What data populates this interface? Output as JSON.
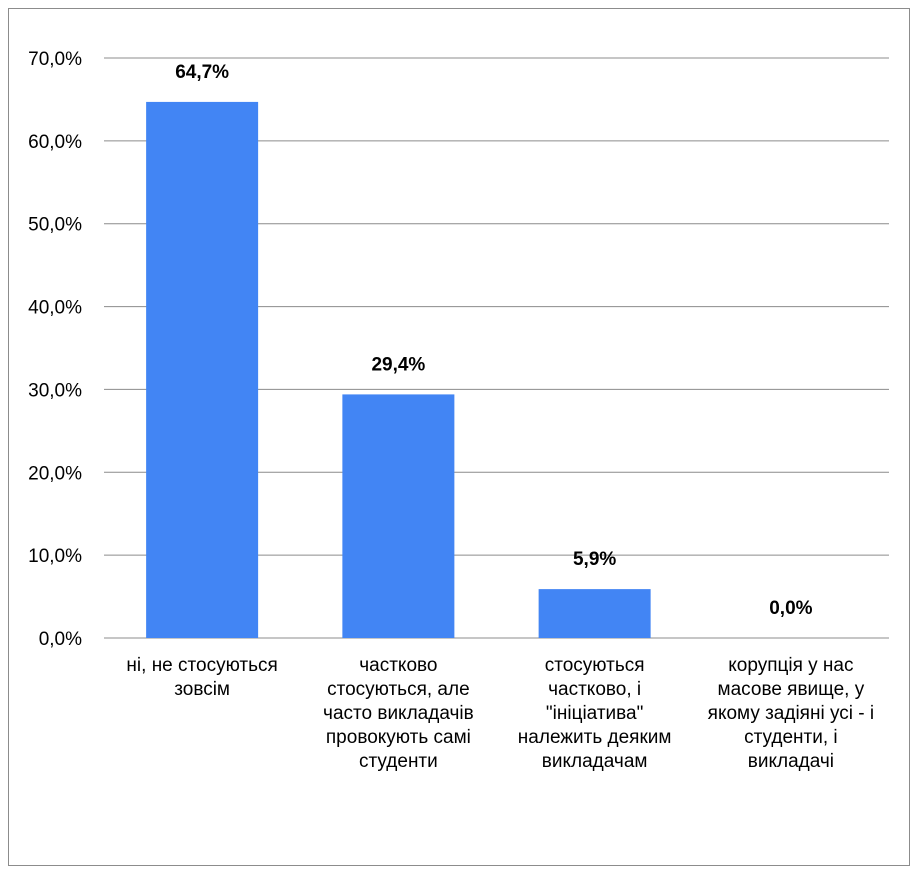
{
  "chart_data": {
    "type": "bar",
    "categories": [
      "ні, не стосуються зовсім",
      "частково стосуються, але часто викладачів провокують самі студенти",
      "стосуються частково, і \"ініціатива\" належить деяким викладачам",
      "корупція у нас масове явище,  у якому задіяні усі - і студенти, і викладачі"
    ],
    "values": [
      64.7,
      29.4,
      5.9,
      0.0
    ],
    "data_labels": [
      "64,7%",
      "29,4%",
      "5,9%",
      "0,0%"
    ],
    "ylim": [
      0,
      70
    ],
    "yticks": [
      "0,0%",
      "10,0%",
      "20,0%",
      "30,0%",
      "40,0%",
      "50,0%",
      "60,0%",
      "70,0%"
    ],
    "grid": true,
    "bar_color": "#4285f4",
    "grid_color": "#8c8c8c",
    "title": "",
    "xlabel": "",
    "ylabel": ""
  }
}
